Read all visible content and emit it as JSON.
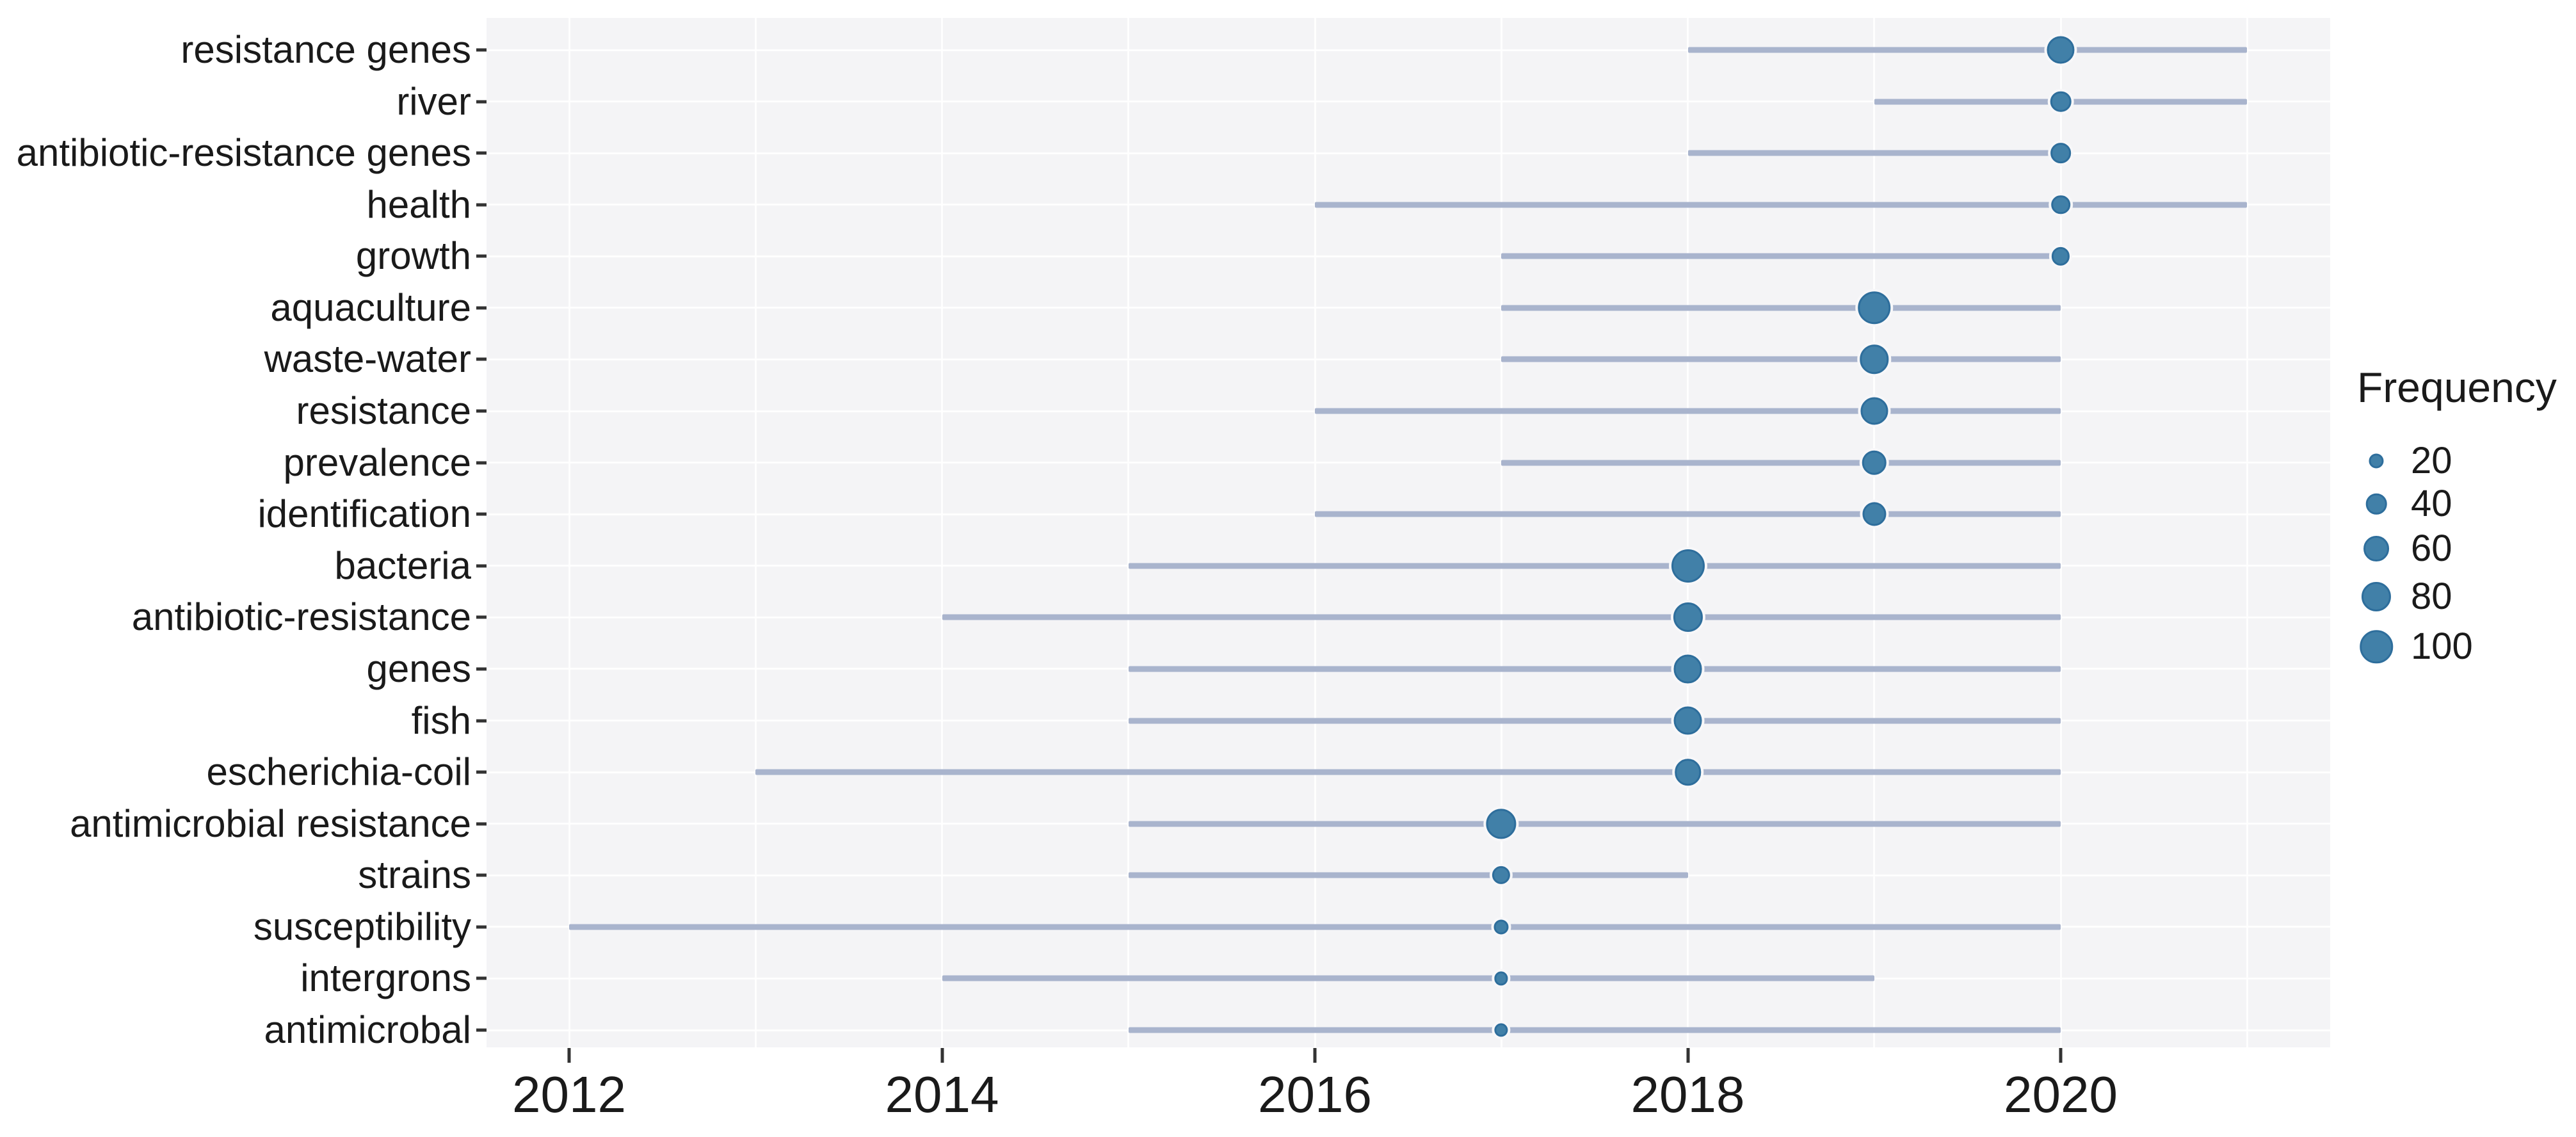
{
  "page": {
    "background": "#ffffff"
  },
  "chart_data": {
    "type": "scatter",
    "subtype": "bubble-timeline-trend-topics",
    "title": "",
    "xlabel": "",
    "ylabel": "",
    "grid": "on",
    "x_axis": {
      "tick_labels": [
        "2012",
        "2014",
        "2016",
        "2018",
        "2020"
      ],
      "tick_years": [
        2012,
        2014,
        2016,
        2018,
        2020
      ],
      "grid_years": [
        2012,
        2013,
        2014,
        2015,
        2016,
        2017,
        2018,
        2019,
        2020,
        2021
      ],
      "range": [
        2011.55,
        2021.45
      ]
    },
    "legend": {
      "title": "Frequency",
      "position": "right",
      "entries": [
        {
          "label": "20",
          "value": 20
        },
        {
          "label": "40",
          "value": 40
        },
        {
          "label": "60",
          "value": 60
        },
        {
          "label": "80",
          "value": 80
        },
        {
          "label": "100",
          "value": 100
        }
      ]
    },
    "series": [
      {
        "term": "resistance genes",
        "line_start_year": 2018,
        "line_end_year": 2021,
        "peak_year": 2020,
        "frequency": 70
      },
      {
        "term": "river",
        "line_start_year": 2019,
        "line_end_year": 2021,
        "peak_year": 2020,
        "frequency": 40
      },
      {
        "term": "antibiotic-resistance genes",
        "line_start_year": 2018,
        "line_end_year": 2020,
        "peak_year": 2020,
        "frequency": 38
      },
      {
        "term": "health",
        "line_start_year": 2016,
        "line_end_year": 2021,
        "peak_year": 2020,
        "frequency": 33
      },
      {
        "term": "growth",
        "line_start_year": 2017,
        "line_end_year": 2020,
        "peak_year": 2020,
        "frequency": 30
      },
      {
        "term": "aquaculture",
        "line_start_year": 2017,
        "line_end_year": 2020,
        "peak_year": 2019,
        "frequency": 100
      },
      {
        "term": "waste-water",
        "line_start_year": 2017,
        "line_end_year": 2020,
        "peak_year": 2019,
        "frequency": 78
      },
      {
        "term": "resistance",
        "line_start_year": 2016,
        "line_end_year": 2020,
        "peak_year": 2019,
        "frequency": 70
      },
      {
        "term": "prevalence",
        "line_start_year": 2017,
        "line_end_year": 2020,
        "peak_year": 2019,
        "frequency": 56
      },
      {
        "term": "identification",
        "line_start_year": 2016,
        "line_end_year": 2020,
        "peak_year": 2019,
        "frequency": 52
      },
      {
        "term": "bacteria",
        "line_start_year": 2015,
        "line_end_year": 2020,
        "peak_year": 2018,
        "frequency": 102
      },
      {
        "term": "antibiotic-resistance",
        "line_start_year": 2014,
        "line_end_year": 2020,
        "peak_year": 2018,
        "frequency": 80
      },
      {
        "term": "genes",
        "line_start_year": 2015,
        "line_end_year": 2020,
        "peak_year": 2018,
        "frequency": 76
      },
      {
        "term": "fish",
        "line_start_year": 2015,
        "line_end_year": 2020,
        "peak_year": 2018,
        "frequency": 76
      },
      {
        "term": "escherichia-coil",
        "line_start_year": 2013,
        "line_end_year": 2020,
        "peak_year": 2018,
        "frequency": 65
      },
      {
        "term": "antimicrobial resistance",
        "line_start_year": 2015,
        "line_end_year": 2020,
        "peak_year": 2017,
        "frequency": 84
      },
      {
        "term": "strains",
        "line_start_year": 2015,
        "line_end_year": 2018,
        "peak_year": 2017,
        "frequency": 30
      },
      {
        "term": "susceptibility",
        "line_start_year": 2012,
        "line_end_year": 2020,
        "peak_year": 2017,
        "frequency": 20
      },
      {
        "term": "intergrons",
        "line_start_year": 2014,
        "line_end_year": 2019,
        "peak_year": 2017,
        "frequency": 17
      },
      {
        "term": "antimicrobal",
        "line_start_year": 2015,
        "line_end_year": 2020,
        "peak_year": 2017,
        "frequency": 17
      }
    ]
  },
  "colors": {
    "dot_fill": "#4180a8",
    "dot_stroke": "#2e6e9c",
    "dot_halo": "#f7f7f9",
    "range_line": "#a9b4cd",
    "panel_background": "#f4f4f6",
    "gridline": "#ffffff",
    "axis_text": "#1a1a1a",
    "tick_mark": "#333333"
  }
}
